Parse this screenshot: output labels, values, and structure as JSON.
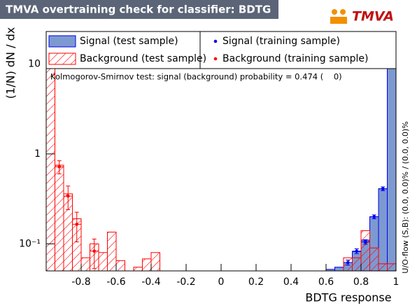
{
  "chart_data": {
    "type": "histogram",
    "title": "TMVA overtraining check for classifier: BDTG",
    "logo": "TMVA",
    "xlabel": "BDTG response",
    "ylabel": "(1/N) dN / dx",
    "annotation": "Kolmogorov-Smirnov test: signal (background) probability = 0.474 (    0)",
    "side_note": "U/O-flow (S,B): (0.0, 0.0)% / (0.0, 0.0)%",
    "log_y": true,
    "xlim": [
      -1,
      1
    ],
    "ylim": [
      0.05,
      23
    ],
    "xticks": [
      -0.8,
      -0.6,
      -0.4,
      -0.2,
      0,
      0.2,
      0.4,
      0.6,
      0.8,
      1
    ],
    "yticks": [
      {
        "value": 0.1,
        "label": "10⁻¹"
      },
      1,
      10
    ],
    "bins": [
      -1,
      -0.95,
      -0.9,
      -0.85,
      -0.8,
      -0.75,
      -0.7,
      -0.65,
      -0.6,
      -0.55,
      -0.5,
      -0.45,
      -0.4,
      -0.35,
      -0.3,
      -0.25,
      -0.2,
      -0.15,
      -0.1,
      -0.05,
      0,
      0.05,
      0.1,
      0.15,
      0.2,
      0.25,
      0.3,
      0.35,
      0.4,
      0.45,
      0.5,
      0.55,
      0.6,
      0.65,
      0.7,
      0.75,
      0.8,
      0.85,
      0.9,
      0.95,
      1
    ],
    "series": [
      {
        "name": "Signal (test sample)",
        "color": "#7d99d1",
        "edge": "#0000ee",
        "style": "filled",
        "values": [
          0,
          0,
          0,
          0,
          0,
          0,
          0,
          0,
          0,
          0,
          0,
          0,
          0,
          0,
          0,
          0,
          0,
          0,
          0,
          0,
          0,
          0,
          0,
          0,
          0,
          0,
          0,
          0,
          0,
          0,
          0,
          0,
          0.052,
          0.055,
          0.062,
          0.082,
          0.11,
          0.2,
          0.41,
          19
        ]
      },
      {
        "name": "Background (test sample)",
        "color": "#ff0000",
        "edge": "#ff0000",
        "style": "hatched",
        "values": [
          18,
          0.75,
          0.36,
          0.19,
          0.07,
          0.1,
          0.08,
          0.135,
          0.065,
          0,
          0.055,
          0.068,
          0.08,
          0,
          0,
          0,
          0,
          0,
          0,
          0,
          0,
          0,
          0,
          0,
          0,
          0,
          0,
          0,
          0,
          0,
          0,
          0,
          0,
          0,
          0.07,
          0.07,
          0.14,
          0.09,
          0.06,
          0.06
        ]
      },
      {
        "name": "Signal (training sample)",
        "color": "#0000ee",
        "style": "points",
        "x": [
          0.725,
          0.775,
          0.825,
          0.875,
          0.925,
          0.975
        ],
        "values": [
          0.062,
          0.083,
          0.105,
          0.2,
          0.41,
          19
        ],
        "errors": [
          0.004,
          0.005,
          0.006,
          0.01,
          0.02,
          0.4
        ]
      },
      {
        "name": "Background (training sample)",
        "color": "#ff0000",
        "style": "points",
        "x": [
          -0.975,
          -0.925,
          -0.875,
          -0.825,
          -0.725
        ],
        "values": [
          18.5,
          0.72,
          0.34,
          0.165,
          0.083
        ],
        "errors": [
          0.5,
          0.12,
          0.1,
          0.06,
          0.03
        ]
      }
    ]
  }
}
